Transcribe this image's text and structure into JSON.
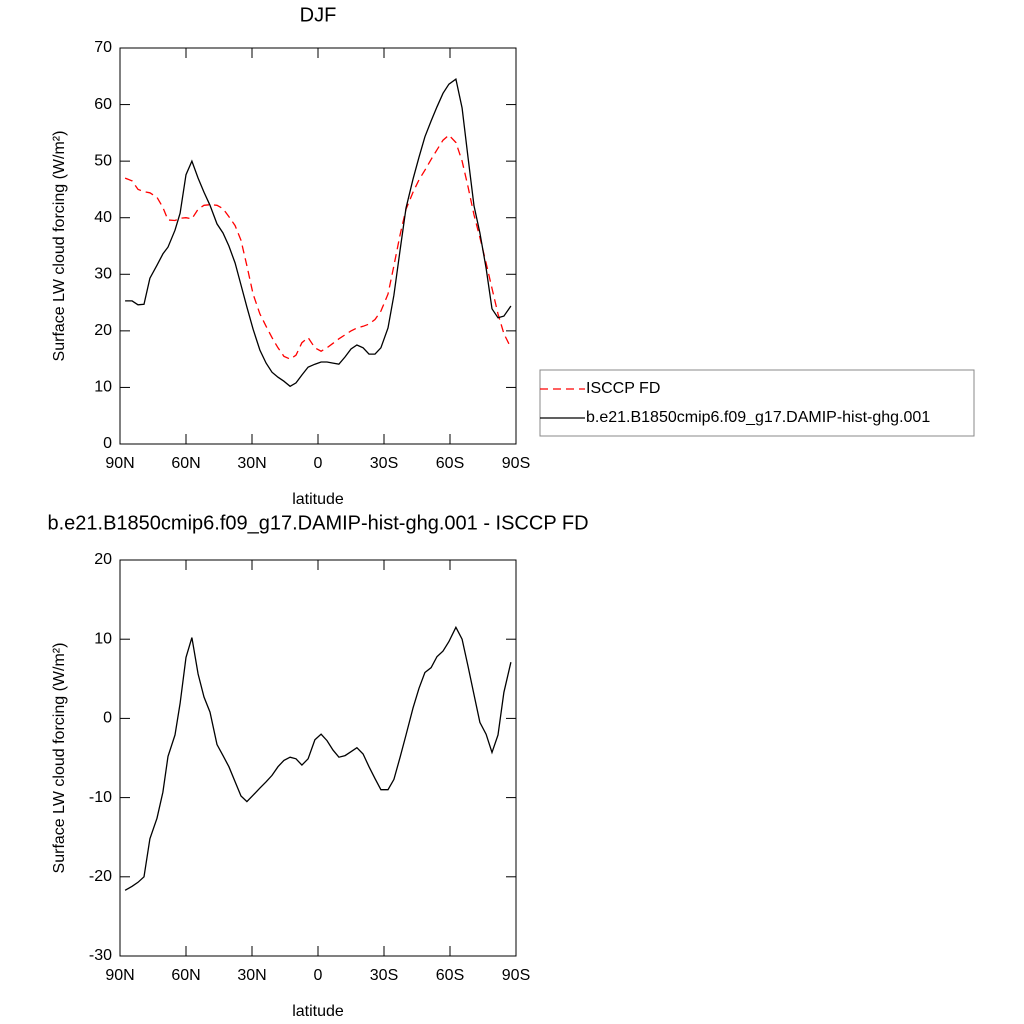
{
  "chart_data": [
    {
      "type": "line",
      "title": "DJF",
      "xlabel": "latitude",
      "ylabel": "Surface LW cloud forcing (W/m²)",
      "x": [
        87.7,
        84.5,
        81.8,
        79.1,
        76.4,
        73.2,
        70.5,
        68.2,
        65,
        62.7,
        60,
        57.3,
        54.5,
        51.8,
        49.1,
        45.9,
        43.2,
        40.5,
        37.7,
        35,
        32.3,
        29.5,
        26.4,
        23.6,
        20.9,
        18.2,
        15.5,
        12.7,
        10,
        7.3,
        4.5,
        1.4,
        -1.4,
        -4.1,
        -6.8,
        -9.5,
        -12.3,
        -15,
        -17.7,
        -20.5,
        -23.2,
        -25.9,
        -28.6,
        -31.8,
        -34.5,
        -37.3,
        -40,
        -43.2,
        -45.9,
        -48.6,
        -51.4,
        -54.1,
        -56.8,
        -59.5,
        -62.7,
        -65.5,
        -68.2,
        -70.9,
        -73.6,
        -76.4,
        -79.1,
        -81.8,
        -84.5,
        -87.7
      ],
      "xlim": [
        90,
        -90
      ],
      "xticks": [
        {
          "value": 90,
          "label": "90N"
        },
        {
          "value": 60,
          "label": "60N"
        },
        {
          "value": 30,
          "label": "30N"
        },
        0,
        {
          "value": -30,
          "label": "30S"
        },
        {
          "value": -60,
          "label": "60S"
        },
        {
          "value": -90,
          "label": "90S"
        }
      ],
      "ylim": [
        0,
        70
      ],
      "yticks": [
        0,
        10,
        20,
        30,
        40,
        50,
        60,
        70
      ],
      "legend": "right",
      "series": [
        {
          "name": "ISCCP FD",
          "color": "#ff0000",
          "linestyle": "dashed",
          "values": [
            47,
            46.5,
            45,
            44.6,
            44.4,
            43.6,
            41.8,
            39.6,
            39.5,
            39.9,
            40,
            39.8,
            41.5,
            42.2,
            42.3,
            42.2,
            41.6,
            40.2,
            38.6,
            36,
            31.5,
            26.5,
            23,
            20.8,
            18.8,
            17,
            15.5,
            15,
            15.7,
            17.9,
            18.8,
            17,
            16.4,
            17,
            17.8,
            18.6,
            19.3,
            20,
            20.5,
            20.8,
            21.2,
            22,
            23.5,
            26.5,
            31.5,
            37,
            41.5,
            44.5,
            46.7,
            48.4,
            50.3,
            52,
            53.7,
            54.6,
            53.3,
            50,
            45.5,
            40.5,
            36.5,
            32,
            27.5,
            23,
            19.5,
            17
          ]
        },
        {
          "name": "b.e21.B1850cmip6.f09_g17.DAMIP-hist-ghg.001",
          "color": "#000000",
          "linestyle": "solid",
          "values": [
            25.3,
            25.3,
            24.6,
            24.7,
            29.3,
            31.6,
            33.6,
            34.8,
            37.8,
            40.8,
            47.6,
            50,
            47,
            44.5,
            42.2,
            38.9,
            37.3,
            35,
            32,
            28.1,
            24.2,
            20.3,
            16.6,
            14.3,
            12.7,
            11.8,
            11.1,
            10.2,
            10.8,
            12.2,
            13.6,
            14.1,
            14.5,
            14.5,
            14.3,
            14.1,
            15.4,
            16.8,
            17.5,
            17,
            15.9,
            15.9,
            17,
            20.5,
            26.3,
            34.3,
            41.7,
            46.8,
            50.7,
            54.3,
            57.1,
            59.6,
            62,
            63.6,
            64.5,
            59.4,
            50.7,
            42.1,
            37.3,
            31.1,
            23.9,
            22.3,
            22.6,
            24.4
          ]
        }
      ]
    },
    {
      "type": "line",
      "title": "b.e21.B1850cmip6.f09_g17.DAMIP-hist-ghg.001 - ISCCP FD",
      "xlabel": "latitude",
      "ylabel": "Surface LW cloud forcing (W/m²)",
      "x": [
        87.7,
        84.5,
        81.8,
        79.1,
        76.4,
        73.2,
        70.5,
        68.2,
        65,
        62.7,
        60,
        57.3,
        54.5,
        51.8,
        49.1,
        45.9,
        43.2,
        40.5,
        37.7,
        35,
        32.3,
        29.5,
        26.4,
        23.6,
        20.9,
        18.2,
        15.5,
        12.7,
        10,
        7.3,
        4.5,
        1.4,
        -1.4,
        -4.1,
        -6.8,
        -9.5,
        -12.3,
        -15,
        -17.7,
        -20.5,
        -23.2,
        -25.9,
        -28.6,
        -31.8,
        -34.5,
        -37.3,
        -40,
        -43.2,
        -45.9,
        -48.6,
        -51.4,
        -54.1,
        -56.8,
        -59.5,
        -62.7,
        -65.5,
        -68.2,
        -70.9,
        -73.6,
        -76.4,
        -79.1,
        -81.8,
        -84.5,
        -87.7
      ],
      "xlim": [
        90,
        -90
      ],
      "xticks": [
        {
          "value": 90,
          "label": "90N"
        },
        {
          "value": 60,
          "label": "60N"
        },
        {
          "value": 30,
          "label": "30N"
        },
        0,
        {
          "value": -30,
          "label": "30S"
        },
        {
          "value": -60,
          "label": "60S"
        },
        {
          "value": -90,
          "label": "90S"
        }
      ],
      "ylim": [
        -30,
        20
      ],
      "yticks": [
        -30,
        -20,
        -10,
        0,
        10,
        20
      ],
      "series": [
        {
          "color": "#000000",
          "linestyle": "solid",
          "values": [
            -21.7,
            -21.2,
            -20.7,
            -20,
            -15.2,
            -12.6,
            -9.3,
            -4.8,
            -2.1,
            1.9,
            7.7,
            10.2,
            5.6,
            2.7,
            0.8,
            -3.3,
            -4.7,
            -6.1,
            -8,
            -9.8,
            -10.5,
            -9.7,
            -8.8,
            -8,
            -7.2,
            -6.1,
            -5.3,
            -4.9,
            -5.1,
            -5.9,
            -5.1,
            -2.7,
            -2,
            -2.8,
            -4,
            -4.9,
            -4.7,
            -4.2,
            -3.7,
            -4.5,
            -6.1,
            -7.6,
            -9,
            -9,
            -7.7,
            -4.9,
            -2.1,
            1.3,
            3.8,
            5.8,
            6.4,
            7.8,
            8.5,
            9.7,
            11.5,
            10,
            6.6,
            3,
            -0.5,
            -2,
            -4.3,
            -2.1,
            3.3,
            7.1
          ]
        }
      ]
    }
  ]
}
